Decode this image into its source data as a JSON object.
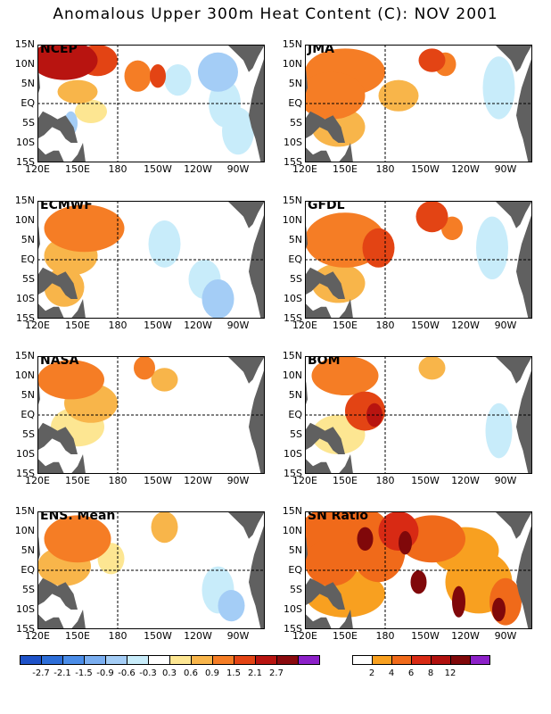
{
  "title": "Anomalous Upper 300m Heat Content (C): NOV 2001",
  "chart_data": [
    {
      "type": "heatmap",
      "name": "NCEP",
      "x_ticks": [
        "120E",
        "150E",
        "180",
        "150W",
        "120W",
        "90W"
      ],
      "y_ticks": [
        "15N",
        "10N",
        "5N",
        "EQ",
        "5S",
        "10S",
        "15S"
      ],
      "blobs": [
        [
          140,
          11,
          25,
          5,
          2.1
        ],
        [
          165,
          11,
          15,
          4,
          1.5
        ],
        [
          195,
          7,
          10,
          4,
          0.9
        ],
        [
          210,
          7,
          6,
          3,
          1.5
        ],
        [
          150,
          3,
          15,
          3,
          0.6
        ],
        [
          160,
          -2,
          12,
          3,
          0.3
        ],
        [
          225,
          6,
          10,
          4,
          -0.6
        ],
        [
          255,
          8,
          15,
          5,
          -0.9
        ],
        [
          260,
          0,
          12,
          6,
          -0.6
        ],
        [
          145,
          -5,
          5,
          3,
          -0.9
        ],
        [
          270,
          -7,
          12,
          6,
          -0.6
        ]
      ]
    },
    {
      "type": "heatmap",
      "name": "JMA",
      "x_ticks": [
        "120E",
        "150E",
        "180",
        "150W",
        "120W",
        "90W"
      ],
      "y_ticks": [
        "15N",
        "10N",
        "5N",
        "EQ",
        "5S",
        "10S",
        "15S"
      ],
      "blobs": [
        [
          150,
          8,
          30,
          6,
          0.9
        ],
        [
          140,
          2,
          25,
          6,
          0.9
        ],
        [
          145,
          -6,
          20,
          5,
          0.6
        ],
        [
          215,
          11,
          10,
          3,
          1.5
        ],
        [
          225,
          10,
          8,
          3,
          0.9
        ],
        [
          190,
          2,
          15,
          4,
          0.6
        ],
        [
          265,
          4,
          12,
          8,
          -0.6
        ],
        [
          255,
          -5,
          20,
          6,
          -0.3
        ]
      ]
    },
    {
      "type": "heatmap",
      "name": "ECMWF",
      "x_ticks": [
        "120E",
        "150E",
        "180",
        "150W",
        "120W",
        "90W"
      ],
      "y_ticks": [
        "15N",
        "10N",
        "5N",
        "EQ",
        "5S",
        "10S",
        "15S"
      ],
      "blobs": [
        [
          155,
          8,
          30,
          6,
          0.9
        ],
        [
          145,
          1,
          20,
          5,
          0.6
        ],
        [
          140,
          -7,
          15,
          5,
          0.6
        ],
        [
          190,
          3,
          12,
          5,
          -0.3
        ],
        [
          215,
          4,
          12,
          6,
          -0.6
        ],
        [
          245,
          -5,
          12,
          5,
          -0.6
        ],
        [
          255,
          -10,
          12,
          5,
          -0.9
        ]
      ]
    },
    {
      "type": "heatmap",
      "name": "GFDL",
      "x_ticks": [
        "120E",
        "150E",
        "180",
        "150W",
        "120W",
        "90W"
      ],
      "y_ticks": [
        "15N",
        "10N",
        "5N",
        "EQ",
        "5S",
        "10S",
        "15S"
      ],
      "blobs": [
        [
          150,
          5,
          30,
          7,
          0.9
        ],
        [
          175,
          3,
          12,
          5,
          1.5
        ],
        [
          215,
          11,
          12,
          4,
          1.5
        ],
        [
          230,
          8,
          8,
          3,
          0.9
        ],
        [
          145,
          -6,
          20,
          5,
          0.6
        ],
        [
          260,
          3,
          12,
          8,
          -0.6
        ],
        [
          255,
          -8,
          15,
          6,
          -0.3
        ]
      ]
    },
    {
      "type": "heatmap",
      "name": "NASA",
      "x_ticks": [
        "120E",
        "150E",
        "180",
        "150W",
        "120W",
        "90W"
      ],
      "y_ticks": [
        "15N",
        "10N",
        "5N",
        "EQ",
        "5S",
        "10S",
        "15S"
      ],
      "blobs": [
        [
          145,
          9,
          25,
          5,
          0.9
        ],
        [
          160,
          3,
          20,
          5,
          0.6
        ],
        [
          200,
          12,
          8,
          3,
          0.9
        ],
        [
          215,
          9,
          10,
          3,
          0.6
        ],
        [
          150,
          -3,
          20,
          5,
          0.3
        ],
        [
          250,
          -7,
          20,
          6,
          -0.3
        ],
        [
          265,
          2,
          10,
          6,
          -0.3
        ]
      ]
    },
    {
      "type": "heatmap",
      "name": "BOM",
      "x_ticks": [
        "120E",
        "150E",
        "180",
        "150W",
        "120W",
        "90W"
      ],
      "y_ticks": [
        "15N",
        "10N",
        "5N",
        "EQ",
        "5S",
        "10S",
        "15S"
      ],
      "blobs": [
        [
          150,
          10,
          25,
          5,
          0.9
        ],
        [
          165,
          1,
          15,
          5,
          1.5
        ],
        [
          172,
          0,
          6,
          3,
          2.1
        ],
        [
          215,
          12,
          10,
          3,
          0.6
        ],
        [
          145,
          -5,
          20,
          5,
          0.3
        ],
        [
          250,
          -5,
          15,
          6,
          -0.3
        ],
        [
          265,
          -4,
          10,
          7,
          -0.6
        ]
      ]
    },
    {
      "type": "heatmap",
      "name": "ENS. Mean",
      "x_ticks": [
        "120E",
        "150E",
        "180",
        "150W",
        "120W",
        "90W"
      ],
      "y_ticks": [
        "15N",
        "10N",
        "5N",
        "EQ",
        "5S",
        "10S",
        "15S"
      ],
      "blobs": [
        [
          150,
          8,
          25,
          6,
          0.9
        ],
        [
          140,
          1,
          20,
          5,
          0.6
        ],
        [
          175,
          3,
          10,
          4,
          0.3
        ],
        [
          215,
          11,
          10,
          4,
          0.6
        ],
        [
          220,
          6,
          8,
          3,
          -0.3
        ],
        [
          255,
          -5,
          12,
          6,
          -0.6
        ],
        [
          265,
          -9,
          10,
          4,
          -0.9
        ]
      ]
    },
    {
      "type": "heatmap",
      "name": "SN Ratio",
      "x_ticks": [
        "120E",
        "150E",
        "180",
        "150W",
        "120W",
        "90W"
      ],
      "y_ticks": [
        "15N",
        "10N",
        "5N",
        "EQ",
        "5S",
        "10S",
        "15S"
      ],
      "blobs": [
        [
          150,
          9,
          35,
          8,
          4
        ],
        [
          140,
          2,
          20,
          6,
          4
        ],
        [
          175,
          5,
          20,
          8,
          4
        ],
        [
          190,
          10,
          15,
          5,
          6
        ],
        [
          215,
          8,
          25,
          6,
          4
        ],
        [
          240,
          5,
          25,
          6,
          2
        ],
        [
          150,
          -6,
          30,
          6,
          2
        ],
        [
          250,
          -3,
          25,
          8,
          2
        ],
        [
          270,
          -8,
          12,
          6,
          4
        ],
        [
          165,
          8,
          6,
          3,
          12
        ],
        [
          195,
          7,
          5,
          3,
          12
        ],
        [
          205,
          -3,
          6,
          3,
          12
        ],
        [
          235,
          -8,
          5,
          4,
          12
        ],
        [
          265,
          -10,
          5,
          3,
          12
        ]
      ]
    }
  ],
  "colorbar_anomaly": {
    "colors": [
      "#1e52c8",
      "#2d6ed8",
      "#4b8de8",
      "#7aaef0",
      "#a4cdf6",
      "#c8ecfa",
      "#ffffff",
      "#fde692",
      "#f8b54a",
      "#f57d25",
      "#e34414",
      "#b81410",
      "#8a0a0e",
      "#8c20c8"
    ],
    "labels": [
      "-2.7",
      "-2.1",
      "-1.5",
      "-0.9",
      "-0.6",
      "-0.3",
      "0.3",
      "0.6",
      "0.9",
      "1.5",
      "2.1",
      "2.7"
    ]
  },
  "colorbar_sn": {
    "colors": [
      "#ffffff",
      "#f8a020",
      "#f06a1a",
      "#d82a14",
      "#b0100e",
      "#80080a",
      "#8c20c8"
    ],
    "labels": [
      "2",
      "4",
      "6",
      "8",
      "12"
    ]
  }
}
